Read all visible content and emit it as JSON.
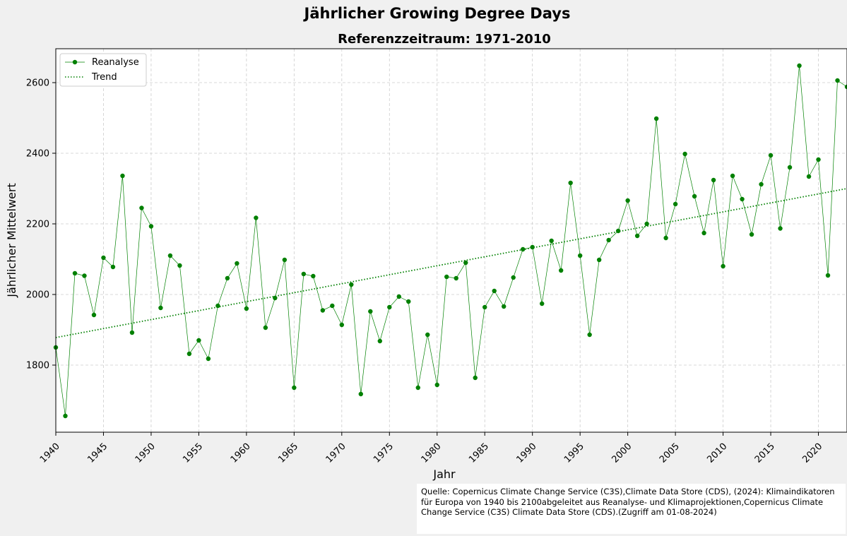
{
  "colors": {
    "series": "#008000",
    "background": "#f0f0f0",
    "plot_background": "#ffffff",
    "grid": "#cccccc"
  },
  "chart_data": {
    "type": "line",
    "title": "Jährlicher Growing Degree Days",
    "subtitle": "Referenzzeitraum: 1971-2010",
    "xlabel": "Jahr",
    "ylabel": "Jährlicher Mittelwert",
    "xlim": [
      1940,
      2023
    ],
    "ylim": [
      1610,
      2696
    ],
    "grid": true,
    "legend_position": "top-left",
    "x_ticks": [
      1940,
      1945,
      1950,
      1955,
      1960,
      1965,
      1970,
      1975,
      1980,
      1985,
      1990,
      1995,
      2000,
      2005,
      2010,
      2015,
      2020
    ],
    "y_ticks": [
      1800,
      2000,
      2200,
      2400,
      2600
    ],
    "series": [
      {
        "name": "Reanalyse",
        "style": "line-with-dots",
        "x": [
          1940,
          1941,
          1942,
          1943,
          1944,
          1945,
          1946,
          1947,
          1948,
          1949,
          1950,
          1951,
          1952,
          1953,
          1954,
          1955,
          1956,
          1957,
          1958,
          1959,
          1960,
          1961,
          1962,
          1963,
          1964,
          1965,
          1966,
          1967,
          1968,
          1969,
          1970,
          1971,
          1972,
          1973,
          1974,
          1975,
          1976,
          1977,
          1978,
          1979,
          1980,
          1981,
          1982,
          1983,
          1984,
          1985,
          1986,
          1987,
          1988,
          1989,
          1990,
          1991,
          1992,
          1993,
          1994,
          1995,
          1996,
          1997,
          1998,
          1999,
          2000,
          2001,
          2002,
          2003,
          2004,
          2005,
          2006,
          2007,
          2008,
          2009,
          2010,
          2011,
          2012,
          2013,
          2014,
          2015,
          2016,
          2017,
          2018,
          2019,
          2020,
          2021,
          2022,
          2023
        ],
        "values": [
          1850,
          1656,
          2060,
          2053,
          1942,
          2104,
          2078,
          2336,
          1892,
          2245,
          2193,
          1962,
          2110,
          2082,
          1832,
          1870,
          1818,
          1968,
          2046,
          2088,
          1960,
          2217,
          1906,
          1990,
          2098,
          1736,
          2058,
          2052,
          1955,
          1968,
          1914,
          2028,
          1718,
          1952,
          1868,
          1964,
          1994,
          1980,
          1736,
          1886,
          1744,
          2050,
          2046,
          2090,
          1764,
          1964,
          2010,
          1966,
          2048,
          2128,
          2134,
          1974,
          2152,
          2068,
          2316,
          2110,
          1886,
          2098,
          2154,
          2180,
          2266,
          2166,
          2200,
          2498,
          2160,
          2256,
          2398,
          2278,
          2174,
          2324,
          2080,
          2336,
          2270,
          2170,
          2312,
          2394,
          2187,
          2360,
          2648,
          2334,
          2382,
          2054,
          2606,
          2588
        ]
      },
      {
        "name": "Trend",
        "style": "dotted-line",
        "x": [
          1940,
          2023
        ],
        "values": [
          1878,
          2300
        ]
      }
    ]
  },
  "source": {
    "text": "Quelle: Copernicus Climate Change Service (C3S),Climate Data Store (CDS), (2024): Klimaindikatoren für Europa von 1940 bis 2100abgeleitet aus Reanalyse- und Klimaprojektionen,Copernicus Climate Change Service (C3S) Climate Data Store (CDS).(Zugriff am 01-08-2024)"
  }
}
